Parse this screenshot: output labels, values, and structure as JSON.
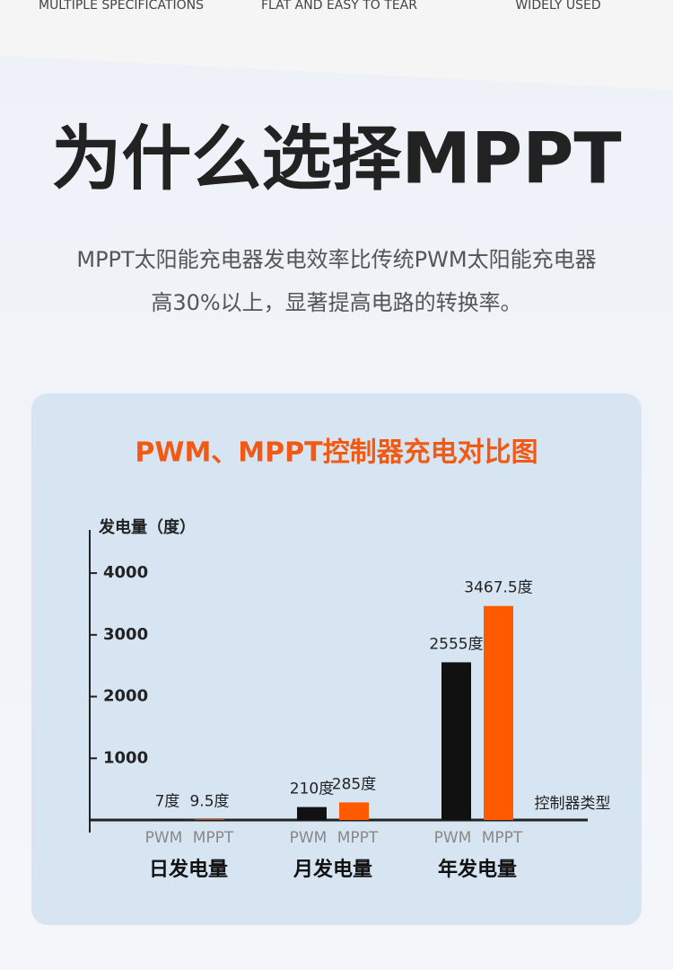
{
  "header": {
    "features": [
      "MULTIPLE SPECIFICATIONS",
      "FLAT AND EASY TO TEAR",
      "WIDELY USED"
    ],
    "title": "为什么选择MPPT",
    "description": [
      "MPPT太阳能充电器发电效率比传统PWM太阳能充电器",
      "高30%以上，显著提高电路的转换率。"
    ]
  },
  "chart_data": {
    "type": "bar",
    "title": "PWM、MPPT控制器充电对比图",
    "y_label": "发电量（度）",
    "x_label": "控制器类型",
    "categories": [
      "日发电量",
      "月发电量",
      "年发电量"
    ],
    "series": [
      {
        "name": "PWM",
        "color": "#111111",
        "values": [
          7,
          210,
          2555
        ],
        "value_labels": [
          "7度",
          "210度",
          "2555度"
        ]
      },
      {
        "name": "MPPT",
        "color": "#ff5a00",
        "values": [
          9.5,
          285,
          3467.5
        ],
        "value_labels": [
          "9.5度",
          "285度",
          "3467.5度"
        ]
      }
    ],
    "ylim": [
      0,
      4700
    ],
    "yticks": [
      1000,
      2000,
      3000,
      4000
    ],
    "grid": false
  }
}
